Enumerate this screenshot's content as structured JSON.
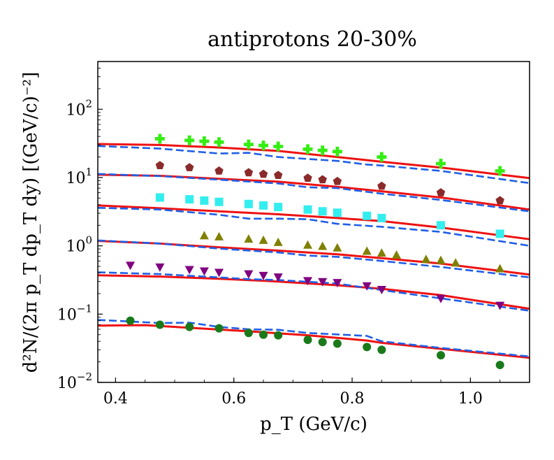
{
  "chart_data": {
    "type": "scatter",
    "title": "antiprotons 20-30%",
    "xlabel": "p_T (GeV/c)",
    "ylabel": "d²N/(2π p_T dp_T dy)  [(GeV/c)⁻²]",
    "xlim": [
      0.37,
      1.1
    ],
    "ylim": [
      0.01,
      500
    ],
    "yscale": "log",
    "grid": false,
    "x_ticks": [
      0.4,
      0.6,
      0.8,
      1.0
    ],
    "x_tick_labels": [
      "0.4",
      "0.6",
      "0.8",
      "1.0"
    ],
    "y_ticks": [
      0.01,
      0.1,
      1,
      10,
      100
    ],
    "y_tick_labels": [
      {
        "base": "10",
        "exp": "−2"
      },
      {
        "base": "10",
        "exp": "−1"
      },
      {
        "base": "10",
        "exp": "0"
      },
      {
        "base": "10",
        "exp": "1"
      },
      {
        "base": "10",
        "exp": "2"
      }
    ],
    "series": [
      {
        "marker": "plus",
        "color": "#33ee11",
        "x": [
          0.475,
          0.525,
          0.55,
          0.575,
          0.625,
          0.65,
          0.675,
          0.725,
          0.75,
          0.775,
          0.85,
          0.95,
          1.05
        ],
        "y": [
          37,
          35,
          34,
          33,
          30.5,
          29.5,
          28.5,
          26,
          25,
          24,
          20,
          16,
          12.5
        ],
        "solid": [
          [
            0.37,
            31
          ],
          [
            0.475,
            30
          ],
          [
            0.575,
            27.5
          ],
          [
            0.675,
            24.5
          ],
          [
            0.775,
            20
          ],
          [
            0.85,
            17
          ],
          [
            0.95,
            14
          ],
          [
            1.1,
            9.8
          ]
        ],
        "dashed": [
          [
            0.37,
            29
          ],
          [
            0.475,
            26.5
          ],
          [
            0.575,
            22.5
          ],
          [
            0.625,
            23
          ],
          [
            0.675,
            20
          ],
          [
            0.775,
            17.5
          ],
          [
            0.825,
            15.5
          ],
          [
            0.85,
            15
          ],
          [
            0.95,
            12.5
          ],
          [
            1.1,
            8.3
          ]
        ]
      },
      {
        "marker": "pentagon",
        "color": "#8b2a2a",
        "x": [
          0.475,
          0.525,
          0.575,
          0.625,
          0.65,
          0.675,
          0.725,
          0.75,
          0.775,
          0.85,
          0.95,
          1.05
        ],
        "y": [
          15,
          14,
          12.5,
          11.8,
          11.2,
          10.8,
          9.8,
          9.3,
          8.8,
          7.5,
          6,
          4.6
        ],
        "solid": [
          [
            0.37,
            11
          ],
          [
            0.475,
            10.6
          ],
          [
            0.575,
            9.6
          ],
          [
            0.675,
            8.7
          ],
          [
            0.775,
            7.3
          ],
          [
            0.85,
            6.3
          ],
          [
            0.95,
            5.1
          ],
          [
            1.1,
            3.4
          ]
        ],
        "dashed": [
          [
            0.37,
            11.3
          ],
          [
            0.475,
            10.5
          ],
          [
            0.575,
            9.3
          ],
          [
            0.675,
            8.2
          ],
          [
            0.725,
            7.2
          ],
          [
            0.775,
            7
          ],
          [
            0.85,
            5.8
          ],
          [
            0.95,
            4.7
          ],
          [
            1.1,
            3.2
          ]
        ]
      },
      {
        "marker": "square",
        "color": "#33eeee",
        "x": [
          0.475,
          0.525,
          0.55,
          0.575,
          0.625,
          0.65,
          0.675,
          0.725,
          0.75,
          0.775,
          0.825,
          0.85,
          0.95,
          1.05
        ],
        "y": [
          5.1,
          4.8,
          4.6,
          4.4,
          4.1,
          3.9,
          3.7,
          3.4,
          3.2,
          3.05,
          2.75,
          2.55,
          2,
          1.5
        ],
        "solid": [
          [
            0.37,
            3.9
          ],
          [
            0.475,
            3.55
          ],
          [
            0.575,
            3.2
          ],
          [
            0.675,
            2.9
          ],
          [
            0.775,
            2.55
          ],
          [
            0.85,
            2.3
          ],
          [
            0.95,
            1.85
          ],
          [
            1.1,
            1.25
          ]
        ],
        "dashed": [
          [
            0.37,
            3.6
          ],
          [
            0.475,
            3.4
          ],
          [
            0.575,
            2.85
          ],
          [
            0.625,
            2.5
          ],
          [
            0.675,
            2.5
          ],
          [
            0.725,
            2.45
          ],
          [
            0.775,
            2.1
          ],
          [
            0.85,
            1.9
          ],
          [
            0.95,
            1.6
          ],
          [
            1.1,
            1.0
          ]
        ]
      },
      {
        "marker": "triangle",
        "color": "#808000",
        "x": [
          0.55,
          0.575,
          0.625,
          0.65,
          0.675,
          0.725,
          0.75,
          0.775,
          0.825,
          0.85,
          0.875,
          0.925,
          0.95,
          0.975,
          1.05
        ],
        "y": [
          1.4,
          1.35,
          1.25,
          1.2,
          1.12,
          1.02,
          0.98,
          0.93,
          0.83,
          0.78,
          0.73,
          0.63,
          0.61,
          0.56,
          0.46
        ],
        "solid": [
          [
            0.37,
            1.18
          ],
          [
            0.475,
            1.08
          ],
          [
            0.575,
            0.95
          ],
          [
            0.675,
            0.85
          ],
          [
            0.775,
            0.75
          ],
          [
            0.85,
            0.66
          ],
          [
            0.95,
            0.55
          ],
          [
            1.1,
            0.38
          ]
        ],
        "dashed": [
          [
            0.37,
            1.2
          ],
          [
            0.475,
            1.08
          ],
          [
            0.575,
            0.91
          ],
          [
            0.675,
            0.8
          ],
          [
            0.725,
            0.72
          ],
          [
            0.775,
            0.69
          ],
          [
            0.85,
            0.6
          ],
          [
            0.95,
            0.49
          ],
          [
            1.1,
            0.345
          ]
        ]
      },
      {
        "marker": "triangle-down",
        "color": "#800080",
        "x": [
          0.425,
          0.475,
          0.525,
          0.55,
          0.575,
          0.625,
          0.65,
          0.675,
          0.725,
          0.75,
          0.775,
          0.825,
          0.85,
          0.95,
          1.05
        ],
        "y": [
          0.52,
          0.49,
          0.45,
          0.43,
          0.41,
          0.39,
          0.37,
          0.35,
          0.31,
          0.3,
          0.29,
          0.26,
          0.23,
          0.17,
          0.135
        ],
        "solid": [
          [
            0.37,
            0.37
          ],
          [
            0.475,
            0.355
          ],
          [
            0.575,
            0.33
          ],
          [
            0.675,
            0.3
          ],
          [
            0.775,
            0.265
          ],
          [
            0.85,
            0.235
          ],
          [
            0.95,
            0.19
          ],
          [
            1.1,
            0.12
          ]
        ],
        "dashed": [
          [
            0.37,
            0.41
          ],
          [
            0.475,
            0.385
          ],
          [
            0.575,
            0.345
          ],
          [
            0.625,
            0.325
          ],
          [
            0.675,
            0.315
          ],
          [
            0.775,
            0.28
          ],
          [
            0.85,
            0.225
          ],
          [
            0.95,
            0.17
          ],
          [
            1.1,
            0.112
          ]
        ]
      },
      {
        "marker": "circle",
        "color": "#1a7a1a",
        "x": [
          0.425,
          0.475,
          0.525,
          0.575,
          0.625,
          0.65,
          0.675,
          0.725,
          0.75,
          0.775,
          0.825,
          0.85,
          0.95,
          1.05
        ],
        "y": [
          0.08,
          0.07,
          0.065,
          0.062,
          0.053,
          0.05,
          0.049,
          0.042,
          0.039,
          0.037,
          0.033,
          0.03,
          0.025,
          0.018
        ],
        "solid": [
          [
            0.37,
            0.068
          ],
          [
            0.45,
            0.069
          ],
          [
            0.525,
            0.063
          ],
          [
            0.625,
            0.056
          ],
          [
            0.725,
            0.049
          ],
          [
            0.825,
            0.041
          ],
          [
            0.85,
            0.038
          ],
          [
            0.95,
            0.031
          ],
          [
            1.1,
            0.023
          ]
        ],
        "dashed": [
          [
            0.37,
            0.082
          ],
          [
            0.425,
            0.078
          ],
          [
            0.475,
            0.074
          ],
          [
            0.525,
            0.075
          ],
          [
            0.575,
            0.065
          ],
          [
            0.625,
            0.06
          ],
          [
            0.675,
            0.059
          ],
          [
            0.725,
            0.053
          ],
          [
            0.825,
            0.048
          ],
          [
            0.85,
            0.04
          ],
          [
            0.95,
            0.032
          ],
          [
            1.1,
            0.024
          ]
        ]
      }
    ],
    "colors": {
      "model_solid": "#ee1111",
      "model_dashed": "#1f5fe6"
    }
  }
}
